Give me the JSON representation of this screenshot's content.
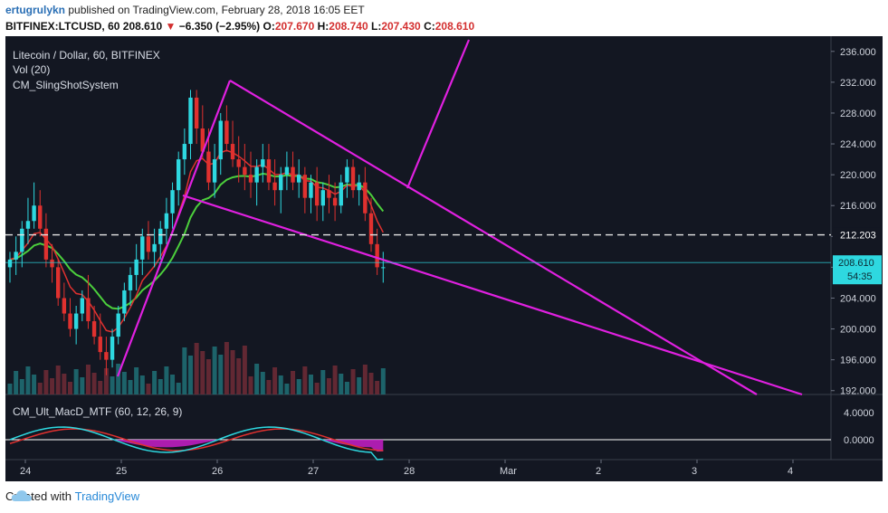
{
  "header": {
    "user": "ertugrulykn",
    "published_text": "published on TradingView.com, February 28, 2018 16:05 EET",
    "symbol": "BITFINEX:LTCUSD, 60",
    "last": "208.610",
    "change": "−6.350 (−2.95%)",
    "o_label": "O:",
    "o_value": "207.670",
    "h_label": "H:",
    "h_value": "208.740",
    "l_label": "L:",
    "l_value": "207.430",
    "c_label": "C:",
    "c_value": "208.610"
  },
  "legend": {
    "title": "Litecoin / Dollar, 60, BITFINEX",
    "vol": "Vol (20)",
    "indicator": "CM_SlingShotSystem",
    "macd": "CM_Ult_MacD_MTF (60, 12, 26, 9)"
  },
  "chart_data": {
    "type": "candlestick",
    "price_axis": {
      "ticks": [
        "236.000",
        "232.000",
        "228.000",
        "224.000",
        "220.000",
        "216.000",
        "212.000",
        "208.000",
        "204.000",
        "200.000",
        "196.000",
        "192.000"
      ],
      "range": [
        191.5,
        237.5
      ]
    },
    "macd_axis": {
      "ticks": [
        "4.0000",
        "0.0000"
      ]
    },
    "x_ticks": [
      "24",
      "25",
      "26",
      "27",
      "28",
      "Mar",
      "2",
      "3",
      "4"
    ],
    "price_labels": {
      "dashed_level": "212.203",
      "last_price": "208.610",
      "countdown": "54:35"
    },
    "candles": [
      [
        208,
        210,
        206,
        209
      ],
      [
        209,
        212,
        207,
        210
      ],
      [
        210,
        214,
        208,
        213
      ],
      [
        213,
        217,
        211,
        214
      ],
      [
        214,
        219,
        213,
        216
      ],
      [
        216,
        218,
        212,
        213
      ],
      [
        213,
        215,
        208,
        209
      ],
      [
        209,
        211,
        206,
        208
      ],
      [
        208,
        209,
        203,
        204
      ],
      [
        204,
        206,
        201,
        202
      ],
      [
        202,
        204,
        199,
        200
      ],
      [
        200,
        203,
        198,
        202
      ],
      [
        202,
        205,
        201,
        204
      ],
      [
        204,
        207,
        200,
        201
      ],
      [
        201,
        203,
        198,
        199
      ],
      [
        199,
        202,
        196,
        197
      ],
      [
        197,
        199,
        194,
        196
      ],
      [
        196,
        200,
        195,
        199
      ],
      [
        199,
        203,
        198,
        202
      ],
      [
        202,
        206,
        201,
        205
      ],
      [
        205,
        208,
        203,
        207
      ],
      [
        207,
        211,
        205,
        209
      ],
      [
        209,
        213,
        207,
        212
      ],
      [
        212,
        214,
        209,
        210
      ],
      [
        210,
        213,
        208,
        211
      ],
      [
        211,
        214,
        209,
        213
      ],
      [
        213,
        217,
        211,
        215
      ],
      [
        215,
        219,
        213,
        218
      ],
      [
        218,
        223,
        216,
        222
      ],
      [
        222,
        226,
        220,
        224
      ],
      [
        224,
        231,
        222,
        230
      ],
      [
        230,
        231,
        224,
        226
      ],
      [
        226,
        229,
        222,
        223
      ],
      [
        223,
        226,
        218,
        219
      ],
      [
        219,
        224,
        217,
        222
      ],
      [
        222,
        228,
        220,
        227
      ],
      [
        227,
        229,
        223,
        224
      ],
      [
        224,
        227,
        221,
        222
      ],
      [
        222,
        225,
        219,
        221
      ],
      [
        221,
        224,
        218,
        220
      ],
      [
        220,
        223,
        217,
        219
      ],
      [
        219,
        222,
        216,
        221
      ],
      [
        221,
        224,
        219,
        222
      ],
      [
        222,
        224,
        218,
        219
      ],
      [
        219,
        222,
        216,
        218
      ],
      [
        218,
        221,
        215,
        220
      ],
      [
        220,
        223,
        218,
        221
      ],
      [
        221,
        223,
        218,
        219
      ],
      [
        219,
        222,
        217,
        220
      ],
      [
        220,
        221,
        215,
        217
      ],
      [
        217,
        220,
        215,
        219
      ],
      [
        219,
        221,
        214,
        216
      ],
      [
        216,
        219,
        214,
        218
      ],
      [
        218,
        220,
        215,
        217
      ],
      [
        217,
        219,
        214,
        216
      ],
      [
        216,
        220,
        215,
        219
      ],
      [
        219,
        222,
        217,
        221
      ],
      [
        221,
        222,
        217,
        218
      ],
      [
        218,
        220,
        216,
        219
      ],
      [
        219,
        221,
        214,
        215
      ],
      [
        215,
        217,
        210,
        211
      ],
      [
        211,
        213,
        207,
        208
      ],
      [
        208,
        210,
        206,
        208
      ]
    ]
  },
  "footer": {
    "created_with": "Created with",
    "brand": "TradingView"
  },
  "colors": {
    "up": "#2ed8e0",
    "down": "#e0312f",
    "trend": "#e020e0",
    "ema_fast": "#e0312f",
    "ema_slow": "#4ccf3c",
    "bg": "#131722",
    "axis_text": "#cfd3dc"
  }
}
